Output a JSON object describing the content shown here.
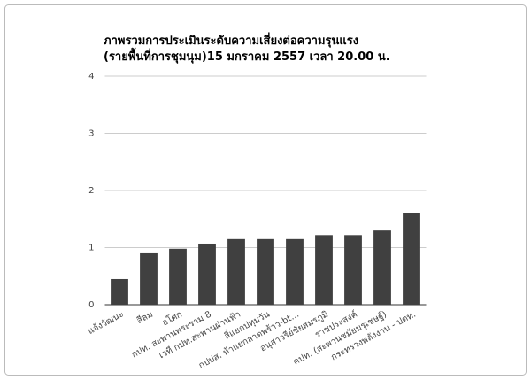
{
  "chart_data": {
    "type": "bar",
    "title": [
      "ภาพรวมการประเมินระดับความเสี่ยงต่อความรุนแรง",
      "(รายพื้นที่การชุมนุม)15 มกราคม 2557 เวลา 20.00 น."
    ],
    "categories": [
      "แจ้งวัฒนะ",
      "สีลม",
      "อโศก",
      "กปท. สะพานพระราม 8",
      "เวที กปท.สะพานผ่านฟ้า",
      "สี่แยกปทุมวัน",
      "กปปส. ห้าแยกลาดพร้าว-bt...",
      "อนุสาวรีย์ชัยสมรภูมิ",
      "ราชประสงค์",
      "คปท. (สะพานชมัยมรุเชษฐ์)",
      "กระทรวงพลังงาน - ปตท."
    ],
    "values": [
      0.45,
      0.9,
      0.98,
      1.07,
      1.15,
      1.15,
      1.15,
      1.22,
      1.22,
      1.3,
      1.6
    ],
    "color": "#404040",
    "ylim": [
      0,
      4
    ],
    "yticks": [
      0,
      1,
      2,
      3,
      4
    ],
    "grid": true
  }
}
